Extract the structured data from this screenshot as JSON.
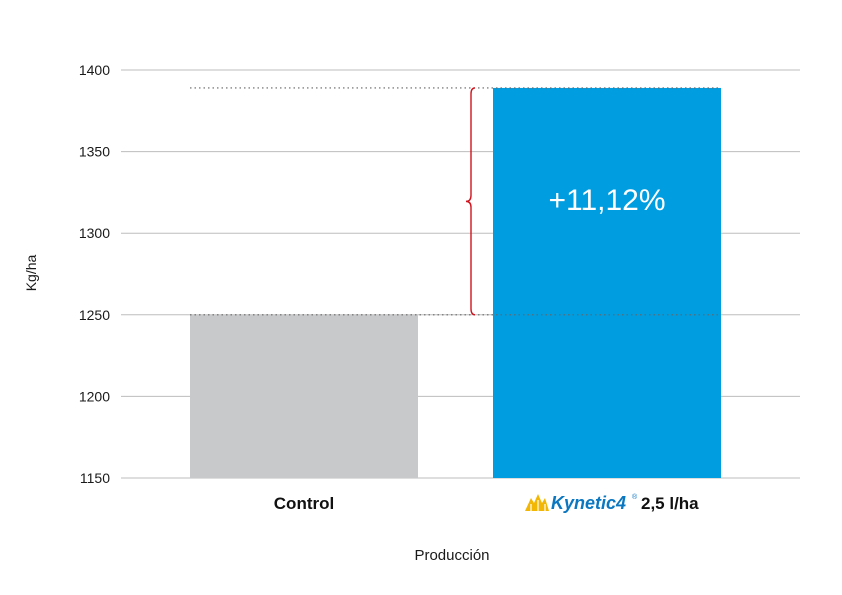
{
  "chart_data": {
    "type": "bar",
    "categories": [
      "Control",
      "Kynetic4 2,5 l/ha"
    ],
    "values": [
      1250,
      1389
    ],
    "ylabel": "Kg/ha",
    "xlabel": "Producción",
    "ylim": [
      1150,
      1400
    ],
    "yticks": [
      1150,
      1200,
      1250,
      1300,
      1350,
      1400
    ],
    "grid": true,
    "annotation": "+11,12%",
    "colors": {
      "control": "#c8c9cb",
      "treatment": "#009de0",
      "bracket": "#d0141e",
      "grid": "#bdbdbd"
    }
  },
  "labels": {
    "control": "Control",
    "brand": "Kynetic4",
    "brand_reg": "®",
    "dose": "2,5 l/ha",
    "brand_icon": "kynetic4-logo-icon"
  }
}
